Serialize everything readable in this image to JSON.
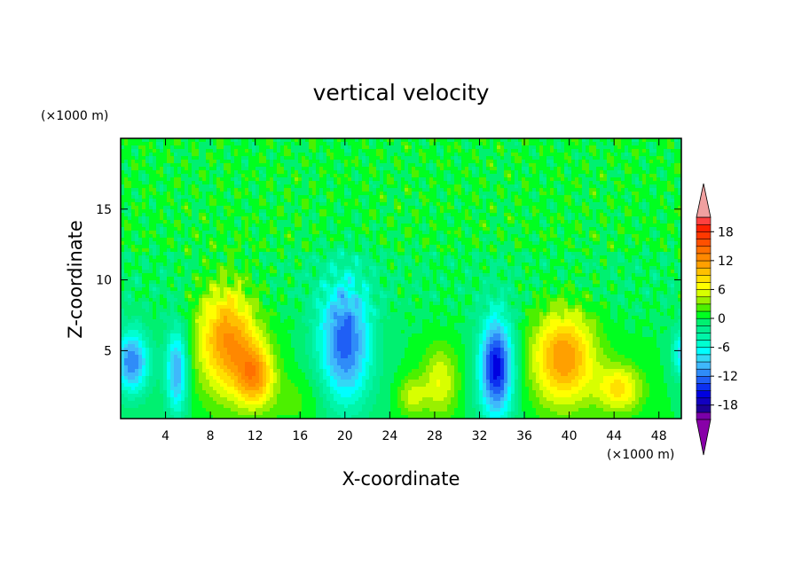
{
  "chart_data": {
    "type": "heatmap",
    "title": "vertical velocity",
    "xlabel": "X-coordinate",
    "ylabel": "Z-coordinate",
    "x_unit_label": "(×1000 m)",
    "y_unit_label": "(×1000 m)",
    "xlim": [
      0,
      50
    ],
    "ylim": [
      0.2,
      20
    ],
    "x_ticks": [
      4,
      8,
      12,
      16,
      20,
      24,
      28,
      32,
      36,
      40,
      44,
      48
    ],
    "x_tick_labels": [
      "4",
      "8",
      "12",
      "16",
      "20",
      "24",
      "28",
      "32",
      "36",
      "40",
      "44",
      "48"
    ],
    "y_ticks": [
      5,
      10,
      15
    ],
    "y_tick_labels": [
      "5",
      "10",
      "15"
    ],
    "colorbar": {
      "levels": [
        -21,
        -19.5,
        -18,
        -16.5,
        -15,
        -13.5,
        -12,
        -10.5,
        -9,
        -7.5,
        -6,
        -4.5,
        -3,
        -1.5,
        0,
        1.5,
        3,
        4.5,
        6,
        7.5,
        9,
        10.5,
        12,
        13.5,
        15,
        16.5,
        18,
        19.5,
        21
      ],
      "tick_values": [
        18,
        12,
        6,
        0,
        -6,
        -12,
        -18
      ],
      "tick_labels": [
        "18",
        "12",
        "6",
        "0",
        "-6",
        "-12",
        "-18"
      ],
      "colors": [
        "#7a00a8",
        "#1c0096",
        "#1200c0",
        "#0000e0",
        "#0c30f0",
        "#1f5ff5",
        "#2f8cf8",
        "#3fb8fb",
        "#33d8f5",
        "#00ffff",
        "#00ffd0",
        "#00f5a8",
        "#00ee90",
        "#00f070",
        "#00ff20",
        "#4cf000",
        "#99f000",
        "#d8ff00",
        "#ffff00",
        "#ffe000",
        "#ffc000",
        "#ffa000",
        "#ff8800",
        "#ff7000",
        "#ff5000",
        "#ff3800",
        "#ff2000",
        "#ff4040"
      ],
      "over_color": "#f0a0a0",
      "under_color": "#8800a8"
    },
    "features": [
      {
        "x": 1.0,
        "z": 4.2,
        "value": -12,
        "sx": 1.1,
        "sz": 1.6
      },
      {
        "x": 5.0,
        "z": 3.6,
        "value": -11,
        "sx": 0.7,
        "sz": 2.2
      },
      {
        "x": 9.5,
        "z": 5.8,
        "value": 12,
        "sx": 1.9,
        "sz": 2.8
      },
      {
        "x": 12.0,
        "z": 3.2,
        "value": 10,
        "sx": 1.2,
        "sz": 1.6
      },
      {
        "x": 20.0,
        "z": 5.6,
        "value": -13,
        "sx": 1.7,
        "sz": 3.2
      },
      {
        "x": 26.0,
        "z": 1.8,
        "value": 5,
        "sx": 0.9,
        "sz": 1.0
      },
      {
        "x": 28.5,
        "z": 2.8,
        "value": 6,
        "sx": 1.1,
        "sz": 1.8
      },
      {
        "x": 33.5,
        "z": 3.8,
        "value": -16,
        "sx": 1.1,
        "sz": 2.6
      },
      {
        "x": 39.5,
        "z": 4.5,
        "value": 12,
        "sx": 2.0,
        "sz": 2.4
      },
      {
        "x": 44.5,
        "z": 2.3,
        "value": 8,
        "sx": 1.4,
        "sz": 1.2
      },
      {
        "x": 50.0,
        "z": 4.8,
        "value": -8,
        "sx": 0.6,
        "sz": 1.2
      },
      {
        "x": 16.0,
        "z": 1.5,
        "value": 2,
        "sx": 2.0,
        "sz": 1.5
      }
    ]
  }
}
